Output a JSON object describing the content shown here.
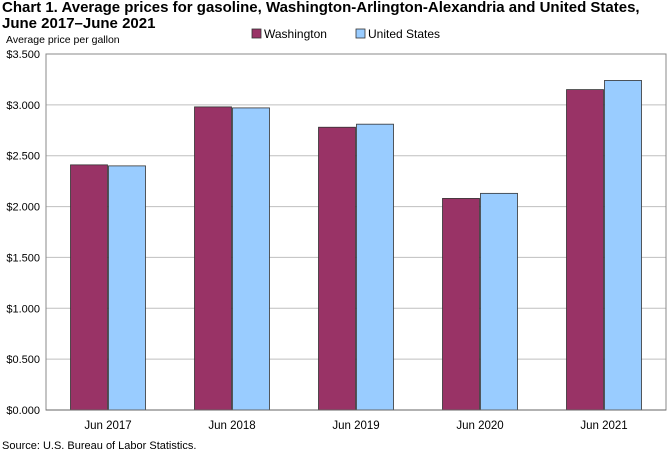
{
  "title": "Chart 1. Average prices for gasoline, Washington-Arlington-Alexandria and United States, June 2017–June 2021",
  "source": "Source: U.S. Bureau of Labor Statistics.",
  "chart_data": {
    "type": "bar",
    "title": "Chart 1. Average prices for gasoline, Washington-Arlington-Alexandria and United States, June 2017–June 2021",
    "xlabel": "",
    "ylabel": "Average price per gallon",
    "ylim": [
      0,
      3.5
    ],
    "ytick_step": 0.5,
    "ytick_labels": [
      "$0.000",
      "$0.500",
      "$1.000",
      "$1.500",
      "$2.000",
      "$2.500",
      "$3.000",
      "$3.500"
    ],
    "grid": true,
    "legend_position": "top-center",
    "categories": [
      "Jun 2017",
      "Jun 2018",
      "Jun 2019",
      "Jun 2020",
      "Jun 2021"
    ],
    "series": [
      {
        "name": "Washington",
        "color": "#993366",
        "values": [
          2.41,
          2.98,
          2.78,
          2.08,
          3.15
        ]
      },
      {
        "name": "United States",
        "color": "#99ccff",
        "values": [
          2.4,
          2.97,
          2.81,
          2.13,
          3.24
        ]
      }
    ]
  }
}
